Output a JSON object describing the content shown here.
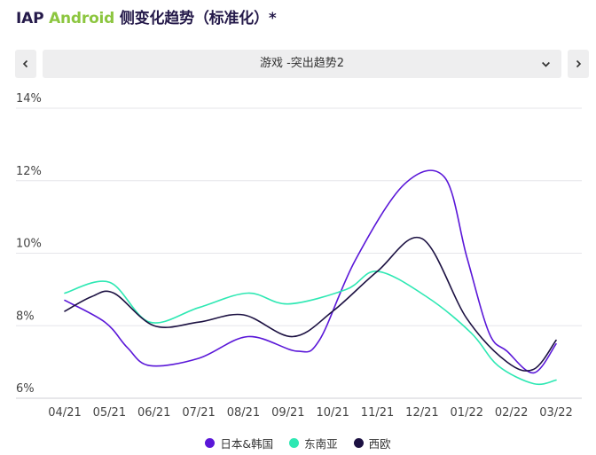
{
  "header": {
    "title_prefix": "IAP ",
    "title_accent": "Android",
    "title_suffix": " 侧变化趋势（标准化）*"
  },
  "selector": {
    "value": "游戏 -突出趋势2"
  },
  "colors": {
    "accent": "#8cc63f",
    "title": "#251a4a",
    "control_bg": "#eeeeef"
  },
  "chart_data": {
    "type": "line",
    "title": "",
    "xlabel": "",
    "ylabel": "",
    "categories": [
      "04/21",
      "05/21",
      "06/21",
      "07/21",
      "08/21",
      "09/21",
      "10/21",
      "11/21",
      "12/21",
      "01/22",
      "02/22",
      "03/22"
    ],
    "ylim": [
      6,
      14
    ],
    "yticks": [
      6,
      8,
      10,
      12,
      14
    ],
    "ytick_labels": [
      "6%",
      "8%",
      "10%",
      "12%",
      "14%"
    ],
    "grid": true,
    "legend_position": "bottom",
    "series": [
      {
        "name": "日本&韩国",
        "color": "#5a17d8",
        "x": [
          0,
          0.9,
          1.4,
          1.9,
          3,
          4.1,
          5.2,
          5.7,
          6.5,
          7.6,
          8.5,
          9,
          9.5,
          9.9,
          10.5,
          11
        ],
        "values": [
          8.7,
          8.1,
          7.4,
          6.9,
          7.1,
          7.7,
          7.3,
          7.6,
          9.8,
          11.9,
          12.1,
          9.9,
          7.8,
          7.3,
          6.7,
          7.5
        ]
      },
      {
        "name": "东南亚",
        "color": "#2ee8b3",
        "x": [
          0,
          1,
          1.9,
          3,
          4.1,
          5,
          6.3,
          7,
          8.1,
          9.1,
          9.7,
          10.5,
          11
        ],
        "values": [
          8.9,
          9.2,
          8.1,
          8.5,
          8.9,
          8.6,
          9.0,
          9.5,
          8.8,
          7.8,
          6.9,
          6.4,
          6.5
        ]
      },
      {
        "name": "西欧",
        "color": "#1c1142",
        "x": [
          0,
          0.6,
          1.1,
          2,
          3,
          4,
          5.1,
          6,
          7,
          8,
          9,
          9.9,
          10.5,
          11
        ],
        "values": [
          8.4,
          8.8,
          8.9,
          8.0,
          8.1,
          8.3,
          7.7,
          8.4,
          9.5,
          10.4,
          8.2,
          7.0,
          6.8,
          7.6
        ]
      }
    ]
  }
}
